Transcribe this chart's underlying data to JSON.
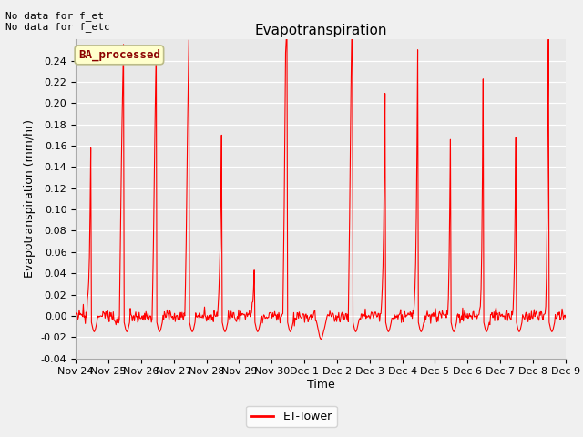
{
  "title": "Evapotranspiration",
  "ylabel": "Evapotranspiration (mm/hr)",
  "xlabel": "Time",
  "ylim": [
    -0.04,
    0.26
  ],
  "yticks": [
    -0.04,
    -0.02,
    0.0,
    0.02,
    0.04,
    0.06,
    0.08,
    0.1,
    0.12,
    0.14,
    0.16,
    0.18,
    0.2,
    0.22,
    0.24
  ],
  "line_color": "#ff0000",
  "line_width": 0.8,
  "bg_color": "#e8e8e8",
  "fig_color": "#f0f0f0",
  "legend_label": "ET-Tower",
  "legend_box_color": "#ffffcc",
  "legend_box_edge": "#bbbb88",
  "ba_label": "BA_processed",
  "note1": "No data for f_et",
  "note2": "No data for f_etc",
  "x_tick_labels": [
    "Nov 24",
    "Nov 25",
    "Nov 26",
    "Nov 27",
    "Nov 28",
    "Nov 29",
    "Nov 30",
    "Dec 1",
    "Dec 2",
    "Dec 3",
    "Dec 4",
    "Dec 5",
    "Dec 6",
    "Dec 7",
    "Dec 8",
    "Dec 9"
  ],
  "title_fontsize": 11,
  "axis_fontsize": 9,
  "tick_fontsize": 8,
  "note_fontsize": 8,
  "ba_fontsize": 9,
  "legend_fontsize": 9
}
